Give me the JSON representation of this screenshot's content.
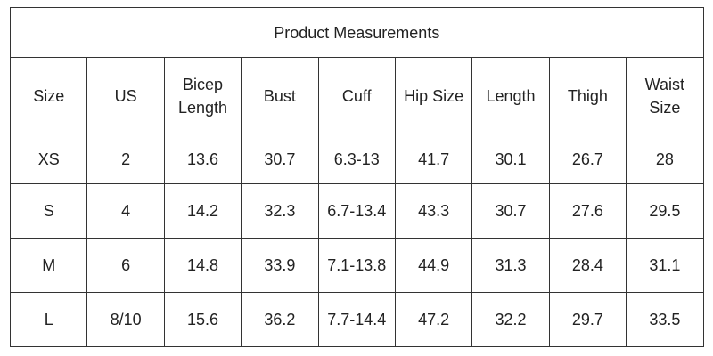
{
  "table": {
    "title": "Product Measurements",
    "header": [
      "Size",
      "US",
      "Bicep\nLength",
      "Bust",
      "Cuff",
      "Hip Size",
      "Length",
      "Thigh",
      "Waist\nSize"
    ],
    "rows": [
      [
        "XS",
        "2",
        "13.6",
        "30.7",
        "6.3-13",
        "41.7",
        "30.1",
        "26.7",
        "28"
      ],
      [
        "S",
        "4",
        "14.2",
        "32.3",
        "6.7-13.4",
        "43.3",
        "30.7",
        "27.6",
        "29.5"
      ],
      [
        "M",
        "6",
        "14.8",
        "33.9",
        "7.1-13.8",
        "44.9",
        "31.3",
        "28.4",
        "31.1"
      ],
      [
        "L",
        "8/10",
        "15.6",
        "36.2",
        "7.7-14.4",
        "47.2",
        "32.2",
        "29.7",
        "33.5"
      ]
    ]
  }
}
